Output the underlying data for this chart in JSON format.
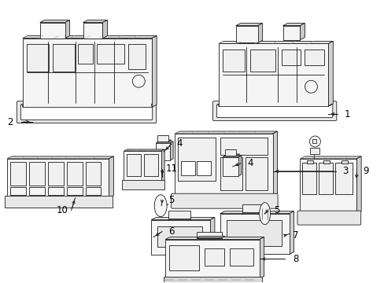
{
  "background_color": "#ffffff",
  "line_color": "#1a1a1a",
  "label_color": "#000000",
  "fig_width": 4.89,
  "fig_height": 3.6,
  "dpi": 100,
  "shading_color": "#d0d0d0",
  "hatch_color": "#888888"
}
